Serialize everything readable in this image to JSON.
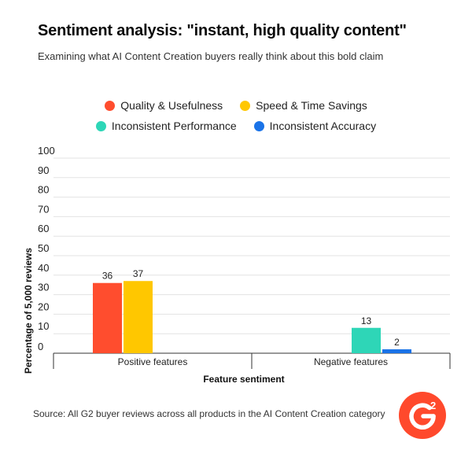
{
  "header": {
    "title": "Sentiment analysis: \"instant, high quality content\"",
    "subtitle": "Examining what AI Content Creation buyers really think about this bold claim"
  },
  "chart_data": {
    "type": "bar",
    "categories": [
      "Positive features",
      "Negative features"
    ],
    "series": [
      {
        "name": "Quality & Usefulness",
        "color": "#ff4d2e",
        "values": [
          36,
          null
        ]
      },
      {
        "name": "Speed & Time Savings",
        "color": "#ffc700",
        "values": [
          37,
          null
        ]
      },
      {
        "name": "Inconsistent Performance",
        "color": "#2ed6b7",
        "values": [
          null,
          13
        ]
      },
      {
        "name": "Inconsistent Accuracy",
        "color": "#1a73e8",
        "values": [
          null,
          2
        ]
      }
    ],
    "xlabel": "Feature sentiment",
    "ylabel": "Percentage of 5,000 reviews",
    "ylim": [
      0,
      100
    ],
    "yticks": [
      0,
      10,
      20,
      30,
      40,
      50,
      60,
      70,
      80,
      90,
      100
    ],
    "grid": true,
    "legend_placement": "top"
  },
  "footer": {
    "source": "Source: All G2 buyer reviews across all products in the AI Content Creation category",
    "logo_icon": "g2-logo-icon",
    "logo_color": "#ff492c"
  }
}
